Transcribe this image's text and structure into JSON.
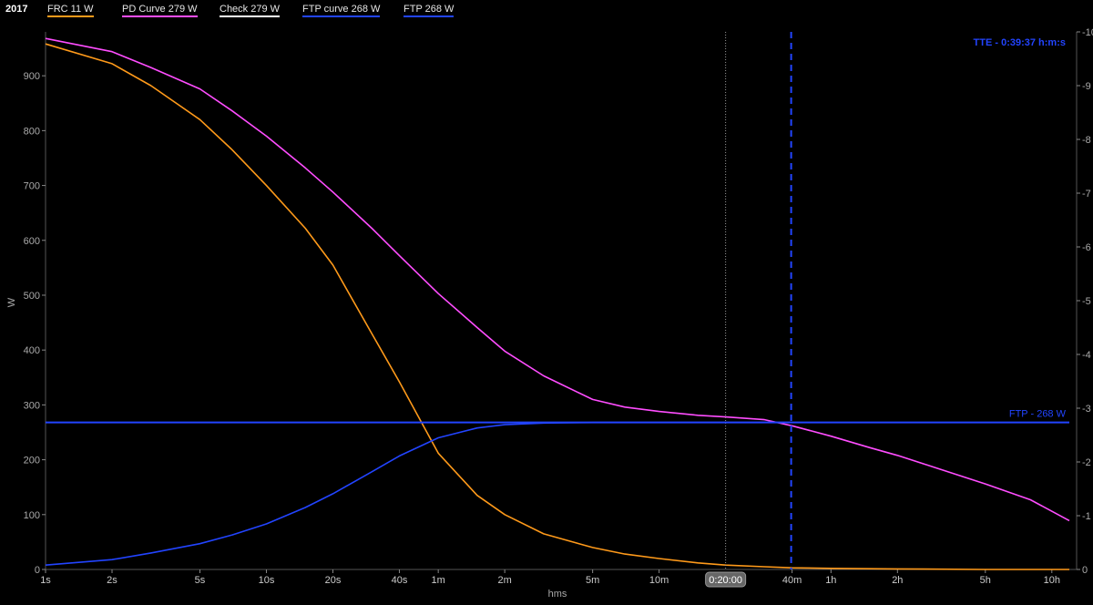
{
  "legend": {
    "year": "2017",
    "items": [
      {
        "label": "FRC  11 W",
        "color": "#ff9a1a"
      },
      {
        "label": "PD Curve  279 W",
        "color": "#ff4dff"
      },
      {
        "label": "Check  279 W",
        "color": "#ffffff"
      },
      {
        "label": "FTP curve  268 W",
        "color": "#2244ff"
      },
      {
        "label": "FTP  268 W",
        "color": "#2244ff"
      }
    ]
  },
  "chart_data": {
    "type": "line",
    "x_scale": "log",
    "xlabel": "hms",
    "ylabel": "W",
    "ylim": [
      0,
      980
    ],
    "yticks": [
      0,
      100,
      200,
      300,
      400,
      500,
      600,
      700,
      800,
      900
    ],
    "right_ylim": [
      0,
      10
    ],
    "right_yticks": [
      0,
      1,
      2,
      3,
      4,
      5,
      6,
      7,
      8,
      9,
      10
    ],
    "right_tick_labels": [
      "0",
      "-1",
      "-2",
      "-3",
      "-4",
      "-5",
      "-6",
      "-7",
      "-8",
      "-9",
      "-10"
    ],
    "xticks": [
      {
        "t": 1,
        "label": "1s"
      },
      {
        "t": 2,
        "label": "2s"
      },
      {
        "t": 5,
        "label": "5s"
      },
      {
        "t": 10,
        "label": "10s"
      },
      {
        "t": 20,
        "label": "20s"
      },
      {
        "t": 40,
        "label": "40s"
      },
      {
        "t": 60,
        "label": "1m"
      },
      {
        "t": 120,
        "label": "2m"
      },
      {
        "t": 300,
        "label": "5m"
      },
      {
        "t": 600,
        "label": "10m"
      },
      {
        "t": 2400,
        "label": "40m"
      },
      {
        "t": 3600,
        "label": "1h"
      },
      {
        "t": 7200,
        "label": "2h"
      },
      {
        "t": 18000,
        "label": "5h"
      },
      {
        "t": 36000,
        "label": "10h"
      }
    ],
    "x_highlight": {
      "t": 1200,
      "label": "0:20:00"
    },
    "tte_marker": {
      "t": 2377,
      "label": "TTE - 0:39:37 h:m:s"
    },
    "ftp_line": {
      "value": 268,
      "label": "FTP - 268 W"
    },
    "series": [
      {
        "name": "PD Curve",
        "color": "#ff4dff",
        "x": [
          1,
          2,
          3,
          5,
          7,
          10,
          15,
          20,
          30,
          40,
          60,
          90,
          120,
          180,
          300,
          420,
          600,
          900,
          1200,
          1800,
          2400,
          3600,
          5400,
          7200,
          10800,
          18000,
          28800,
          43200
        ],
        "y": [
          968,
          944,
          915,
          876,
          836,
          790,
          732,
          688,
          622,
          572,
          503,
          441,
          398,
          353,
          310,
          296,
          288,
          281,
          278,
          273,
          262,
          243,
          222,
          208,
          185,
          156,
          127,
          89
        ]
      },
      {
        "name": "FRC",
        "color": "#ff9a1a",
        "x": [
          1,
          2,
          3,
          5,
          7,
          10,
          15,
          20,
          30,
          40,
          60,
          90,
          120,
          180,
          300,
          420,
          600,
          900,
          1200,
          1800,
          2400,
          3600,
          7200,
          18000,
          43200
        ],
        "y": [
          958,
          922,
          882,
          820,
          765,
          700,
          622,
          555,
          430,
          342,
          212,
          135,
          100,
          65,
          40,
          28,
          20,
          12,
          8,
          5,
          3,
          2,
          1,
          0,
          0
        ]
      },
      {
        "name": "FTP curve",
        "color": "#2244ff",
        "x": [
          1,
          2,
          3,
          5,
          7,
          10,
          15,
          20,
          30,
          40,
          60,
          90,
          120,
          180,
          300,
          600,
          1200,
          2400
        ],
        "y": [
          8,
          18,
          30,
          47,
          63,
          83,
          113,
          138,
          178,
          207,
          240,
          258,
          264,
          267,
          268,
          268,
          268,
          268
        ]
      }
    ]
  }
}
